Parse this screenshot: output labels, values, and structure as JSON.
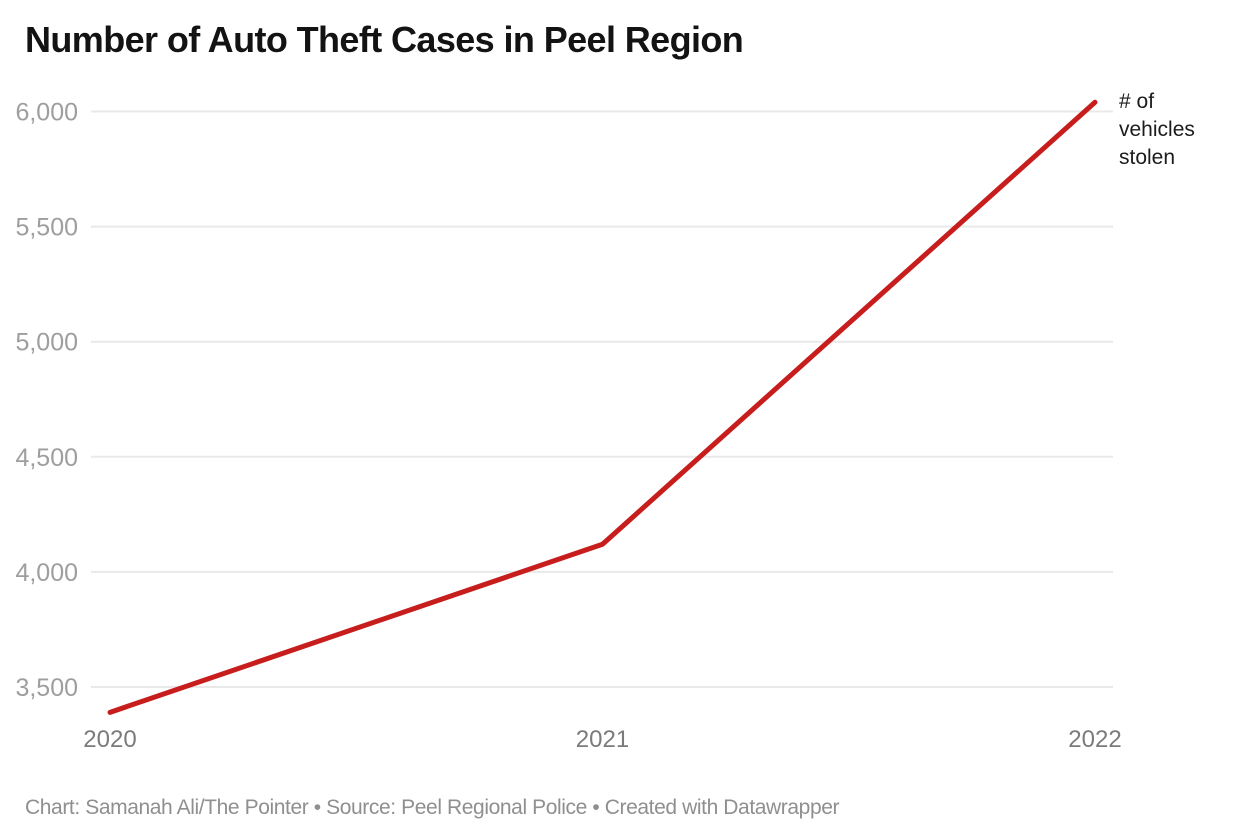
{
  "chart_data": {
    "type": "line",
    "title": "Number of Auto Theft Cases in Peel Region",
    "x_labels": [
      "2020",
      "2021",
      "2022"
    ],
    "y_ticks": [
      3500,
      4000,
      4500,
      5000,
      5500,
      6000
    ],
    "y_tick_labels": [
      "3,500",
      "4,000",
      "4,500",
      "5,000",
      "5,500",
      "6,000"
    ],
    "ylim": [
      3350,
      6100
    ],
    "grid": true,
    "series": [
      {
        "name": "# of vehicles stolen",
        "values": [
          3390,
          4120,
          6040
        ]
      }
    ],
    "line_color": "#c71e1d",
    "end_label": "# of vehicles stolen",
    "legend_position": "line-end"
  },
  "footer": {
    "text": "Chart: Samanah Ali/The Pointer • Source: Peel Regional Police • Created with Datawrapper"
  },
  "colors": {
    "accent": "#c71e1d",
    "grid": "#e9e9e9",
    "y_tick_text": "#9e9e9e",
    "x_tick_text": "#7b7b7b",
    "title_text": "#131313",
    "annotation_text": "#1c1c1c",
    "footer_text": "#8f8f8f",
    "background": "#ffffff"
  }
}
